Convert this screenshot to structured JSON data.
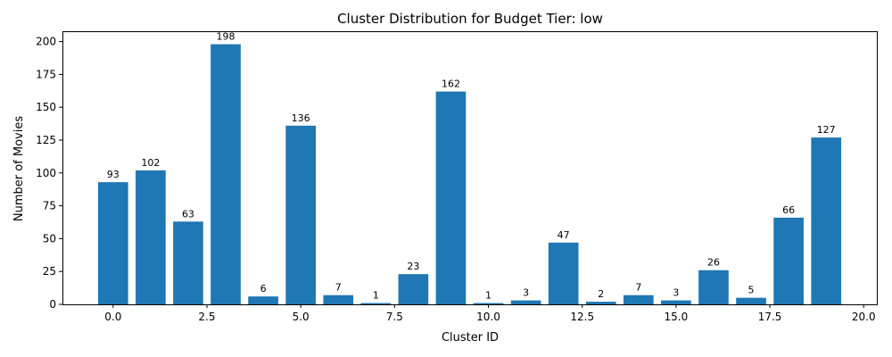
{
  "chart_data": {
    "type": "bar",
    "title": "Cluster Distribution for Budget Tier: low",
    "xlabel": "Cluster ID",
    "ylabel": "Number of Movies",
    "x": [
      0,
      1,
      2,
      3,
      4,
      5,
      6,
      7,
      8,
      9,
      10,
      11,
      12,
      13,
      14,
      15,
      16,
      17,
      18,
      19
    ],
    "values": [
      93,
      102,
      63,
      198,
      6,
      136,
      7,
      1,
      23,
      162,
      1,
      3,
      47,
      2,
      7,
      3,
      26,
      5,
      66,
      127
    ],
    "data_labels": [
      "93",
      "102",
      "63",
      "198",
      "6",
      "136",
      "7",
      "1",
      "23",
      "162",
      "1",
      "3",
      "47",
      "2",
      "7",
      "3",
      "26",
      "5",
      "66",
      "127"
    ],
    "xlim": [
      -1.35,
      20.35
    ],
    "ylim": [
      0,
      207.9
    ],
    "x_ticks": [
      0.0,
      2.5,
      5.0,
      7.5,
      10.0,
      12.5,
      15.0,
      17.5,
      20.0
    ],
    "x_tick_labels": [
      "0.0",
      "2.5",
      "5.0",
      "7.5",
      "10.0",
      "12.5",
      "15.0",
      "17.5",
      "20.0"
    ],
    "y_ticks": [
      0,
      25,
      50,
      75,
      100,
      125,
      150,
      175,
      200
    ],
    "y_tick_labels": [
      "0",
      "25",
      "50",
      "75",
      "100",
      "125",
      "150",
      "175",
      "200"
    ],
    "grid": false,
    "legend": "none",
    "bar_color": "#1f77b4"
  }
}
